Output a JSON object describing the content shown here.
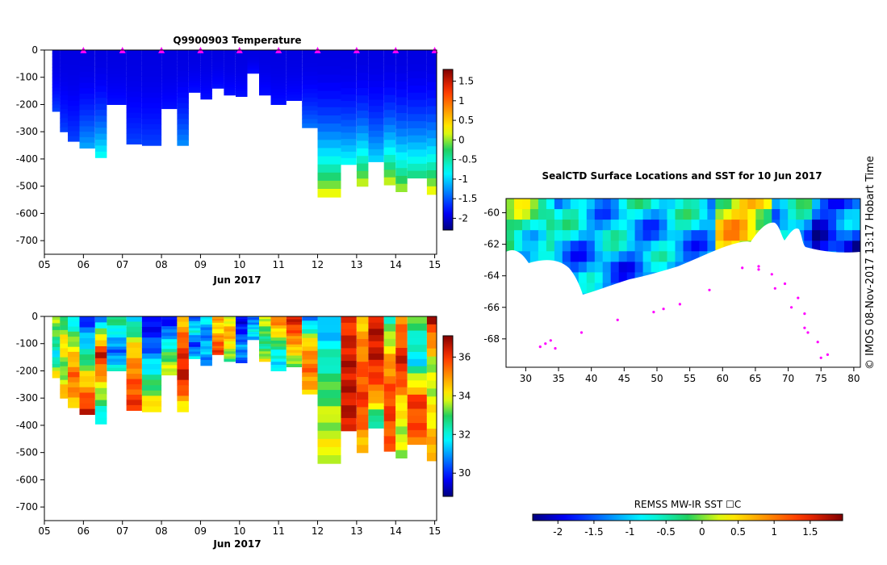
{
  "chart_data": [
    {
      "type": "heatmap",
      "title": "Q9900903  Temperature",
      "xlabel": "Jun 2017",
      "ylabel": "",
      "x_ticks": [
        "05",
        "06",
        "07",
        "08",
        "09",
        "10",
        "11",
        "12",
        "13",
        "14",
        "15"
      ],
      "y_ticks": [
        "0",
        "-100",
        "-200",
        "-300",
        "-400",
        "-500",
        "-600",
        "-700"
      ],
      "xlim": [
        5.0,
        15.05
      ],
      "ylim": [
        -750,
        0
      ],
      "colorbar": {
        "ticks": [
          "1.5",
          "1",
          "0.5",
          "0",
          "-0.5",
          "-1",
          "-1.5",
          "-2"
        ],
        "tick_values": [
          1.5,
          1,
          0.5,
          0,
          -0.5,
          -1,
          -1.5,
          -2
        ],
        "range": [
          -2.3,
          1.8
        ]
      },
      "surface_markers": [
        6.0,
        7.0,
        8.0,
        9.0,
        10.0,
        11.0,
        12.0,
        13.0,
        14.0,
        15.0
      ],
      "profiles": [
        {
          "day": 5.2,
          "max_depth": 225,
          "bottom_value": -1.6
        },
        {
          "day": 5.4,
          "max_depth": 300,
          "bottom_value": -1.6
        },
        {
          "day": 5.6,
          "max_depth": 335,
          "bottom_value": -1.6
        },
        {
          "day": 5.9,
          "max_depth": 360,
          "bottom_value": -1.2
        },
        {
          "day": 6.3,
          "max_depth": 395,
          "bottom_value": -0.8
        },
        {
          "day": 6.6,
          "max_depth": 200,
          "bottom_value": -1.8
        },
        {
          "day": 7.1,
          "max_depth": 345,
          "bottom_value": -1.6
        },
        {
          "day": 7.5,
          "max_depth": 350,
          "bottom_value": -1.6
        },
        {
          "day": 8.0,
          "max_depth": 215,
          "bottom_value": -1.8
        },
        {
          "day": 8.4,
          "max_depth": 350,
          "bottom_value": -1.3
        },
        {
          "day": 8.7,
          "max_depth": 155,
          "bottom_value": -1.8
        },
        {
          "day": 9.0,
          "max_depth": 180,
          "bottom_value": -1.8
        },
        {
          "day": 9.3,
          "max_depth": 140,
          "bottom_value": -1.8
        },
        {
          "day": 9.6,
          "max_depth": 165,
          "bottom_value": -1.8
        },
        {
          "day": 9.9,
          "max_depth": 170,
          "bottom_value": -1.8
        },
        {
          "day": 10.2,
          "max_depth": 85,
          "bottom_value": -1.8
        },
        {
          "day": 10.5,
          "max_depth": 165,
          "bottom_value": -1.8
        },
        {
          "day": 10.8,
          "max_depth": 200,
          "bottom_value": -1.8
        },
        {
          "day": 11.2,
          "max_depth": 185,
          "bottom_value": -1.8
        },
        {
          "day": 11.6,
          "max_depth": 285,
          "bottom_value": -1.4
        },
        {
          "day": 12.0,
          "max_depth": 540,
          "bottom_value": 0.2
        },
        {
          "day": 12.6,
          "max_depth": 420,
          "bottom_value": -0.8
        },
        {
          "day": 13.0,
          "max_depth": 500,
          "bottom_value": 0.1
        },
        {
          "day": 13.3,
          "max_depth": 410,
          "bottom_value": -1.0
        },
        {
          "day": 13.7,
          "max_depth": 495,
          "bottom_value": 0.1
        },
        {
          "day": 14.0,
          "max_depth": 520,
          "bottom_value": 0.0
        },
        {
          "day": 14.3,
          "max_depth": 470,
          "bottom_value": -0.4
        },
        {
          "day": 14.8,
          "max_depth": 530,
          "bottom_value": 0.2
        }
      ]
    },
    {
      "type": "heatmap",
      "title": "",
      "xlabel": "Jun 2017",
      "ylabel": "",
      "x_ticks": [
        "05",
        "06",
        "07",
        "08",
        "09",
        "10",
        "11",
        "12",
        "13",
        "14",
        "15"
      ],
      "y_ticks": [
        "0",
        "-100",
        "-200",
        "-300",
        "-400",
        "-500",
        "-600",
        "-700"
      ],
      "xlim": [
        5.0,
        15.05
      ],
      "ylim": [
        -750,
        0
      ],
      "colorbar": {
        "ticks": [
          "36",
          "34",
          "32",
          "30"
        ],
        "tick_values": [
          36,
          34,
          32,
          30
        ],
        "range": [
          28.8,
          37.1
        ]
      },
      "profiles": [
        {
          "day": 5.2,
          "max_depth": 225,
          "values": [
            33.5,
            33.0,
            31.5,
            34.5
          ]
        },
        {
          "day": 5.4,
          "max_depth": 300,
          "values": [
            32.5,
            34.5,
            33.0,
            35.0
          ]
        },
        {
          "day": 5.6,
          "max_depth": 335,
          "values": [
            31.5,
            34.0,
            35.5,
            34.5
          ]
        },
        {
          "day": 5.9,
          "max_depth": 360,
          "values": [
            30.0,
            32.0,
            34.5,
            36.5
          ]
        },
        {
          "day": 6.3,
          "max_depth": 395,
          "values": [
            31.0,
            36.5,
            34.0,
            31.5
          ]
        },
        {
          "day": 6.6,
          "max_depth": 200,
          "values": [
            33.0,
            31.5,
            30.5,
            32.0
          ]
        },
        {
          "day": 7.1,
          "max_depth": 345,
          "values": [
            31.5,
            34.5,
            35.5,
            36.0
          ]
        },
        {
          "day": 7.5,
          "max_depth": 350,
          "values": [
            29.5,
            30.5,
            32.5,
            34.5
          ]
        },
        {
          "day": 8.0,
          "max_depth": 215,
          "values": [
            29.5,
            31.0,
            33.0,
            34.0
          ]
        },
        {
          "day": 8.4,
          "max_depth": 350,
          "values": [
            34.5,
            36.0,
            36.5,
            34.0
          ]
        },
        {
          "day": 8.7,
          "max_depth": 155,
          "values": [
            30.5,
            32.0,
            30.0,
            31.5
          ]
        },
        {
          "day": 9.0,
          "max_depth": 180,
          "values": [
            32.0,
            30.5,
            31.5,
            30.5
          ]
        },
        {
          "day": 9.3,
          "max_depth": 140,
          "values": [
            35.0,
            34.0,
            35.5,
            36.0
          ]
        },
        {
          "day": 9.6,
          "max_depth": 165,
          "values": [
            33.5,
            35.0,
            34.0,
            33.0
          ]
        },
        {
          "day": 9.9,
          "max_depth": 170,
          "values": [
            29.5,
            30.0,
            31.0,
            30.5
          ]
        },
        {
          "day": 10.2,
          "max_depth": 85,
          "values": [
            30.5,
            31.0,
            32.0,
            31.0
          ]
        },
        {
          "day": 10.5,
          "max_depth": 165,
          "values": [
            34.0,
            33.0,
            32.5,
            34.0
          ]
        },
        {
          "day": 10.8,
          "max_depth": 200,
          "values": [
            35.5,
            34.0,
            32.0,
            31.5
          ]
        },
        {
          "day": 11.2,
          "max_depth": 185,
          "values": [
            36.5,
            35.5,
            34.5,
            33.0
          ]
        },
        {
          "day": 11.6,
          "max_depth": 285,
          "values": [
            30.5,
            34.5,
            35.5,
            34.5
          ]
        },
        {
          "day": 12.0,
          "max_depth": 540,
          "values": [
            31.0,
            32.5,
            33.5,
            34.0
          ]
        },
        {
          "day": 12.6,
          "max_depth": 420,
          "values": [
            36.0,
            36.5,
            36.5,
            36.5
          ]
        },
        {
          "day": 13.0,
          "max_depth": 500,
          "values": [
            34.5,
            35.5,
            36.0,
            34.5
          ]
        },
        {
          "day": 13.3,
          "max_depth": 410,
          "values": [
            36.5,
            36.5,
            35.5,
            32.0
          ]
        },
        {
          "day": 13.7,
          "max_depth": 495,
          "values": [
            32.5,
            35.0,
            36.0,
            35.5
          ]
        },
        {
          "day": 14.0,
          "max_depth": 520,
          "values": [
            35.0,
            36.5,
            34.0,
            33.5
          ]
        },
        {
          "day": 14.3,
          "max_depth": 470,
          "values": [
            33.0,
            31.5,
            36.0,
            35.5
          ]
        },
        {
          "day": 14.8,
          "max_depth": 530,
          "values": [
            36.5,
            33.5,
            34.0,
            35.0
          ]
        }
      ]
    },
    {
      "type": "heatmap",
      "title": "SealCTD Surface Locations and SST for 10 Jun 2017",
      "xlabel": "",
      "ylabel": "",
      "x_ticks": [
        "30",
        "35",
        "40",
        "45",
        "50",
        "55",
        "60",
        "65",
        "70",
        "75",
        "80"
      ],
      "y_ticks": [
        "-60",
        "-62",
        "-64",
        "-66",
        "-68"
      ],
      "xlim": [
        27,
        81
      ],
      "ylim": [
        -69.8,
        -59.1
      ],
      "colorbar": {
        "label": "REMSS MW-IR SST ☐C",
        "ticks": [
          "-2",
          "-1.5",
          "-1",
          "-0.5",
          "0",
          "0.5",
          "1",
          "1.5"
        ],
        "tick_values": [
          -2,
          -1.5,
          -1,
          -0.5,
          0,
          0.5,
          1,
          1.5
        ],
        "range": [
          -2.35,
          1.95
        ]
      },
      "surface_locations": [
        [
          32.2,
          -68.5
        ],
        [
          33.0,
          -68.3
        ],
        [
          33.8,
          -68.1
        ],
        [
          34.5,
          -68.6
        ],
        [
          38.5,
          -67.6
        ],
        [
          44.0,
          -66.8
        ],
        [
          49.5,
          -66.3
        ],
        [
          51.0,
          -66.1
        ],
        [
          53.5,
          -65.8
        ],
        [
          58.0,
          -64.9
        ],
        [
          63.0,
          -63.5
        ],
        [
          65.5,
          -63.6
        ],
        [
          67.5,
          -63.9
        ],
        [
          69.5,
          -64.5
        ],
        [
          71.5,
          -65.4
        ],
        [
          72.5,
          -66.4
        ],
        [
          72.5,
          -67.3
        ],
        [
          74.5,
          -68.2
        ],
        [
          76.0,
          -69.0
        ],
        [
          75.0,
          -69.2
        ],
        [
          73.0,
          -67.6
        ],
        [
          70.5,
          -66.0
        ],
        [
          68.0,
          -64.8
        ],
        [
          65.5,
          -63.4
        ]
      ]
    }
  ],
  "map_panel": {
    "credit": "©  IMOS 08-Nov-2017 13:17 Hobart Time"
  }
}
